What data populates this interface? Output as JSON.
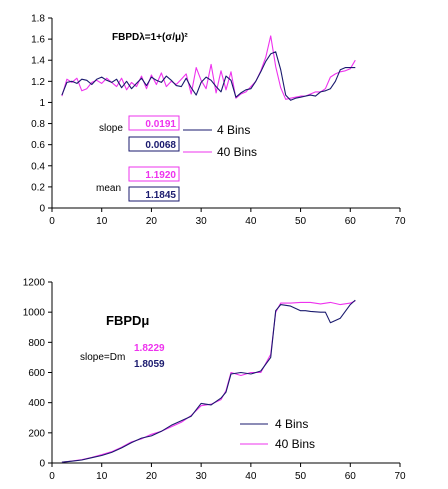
{
  "colors": {
    "series_4bins": "#1a1a6e",
    "series_40bins": "#ee33ee",
    "axis": "#000000"
  },
  "chart_data": [
    {
      "type": "line",
      "title": "FBPDλ=1+(σ/μ)²",
      "xlim": [
        0,
        70
      ],
      "ylim": [
        0,
        1.8
      ],
      "xticks": [
        "0",
        "10",
        "20",
        "30",
        "40",
        "50",
        "60",
        "70"
      ],
      "yticks": [
        "0",
        "0.2",
        "0.4",
        "0.6",
        "0.8",
        "1",
        "1.2",
        "1.4",
        "1.6",
        "1.8"
      ],
      "grid": false,
      "legend_position": "center-right",
      "series": [
        {
          "name": "4 Bins",
          "x": [
            2,
            3,
            4,
            5,
            6,
            7,
            8,
            9,
            10,
            11,
            12,
            13,
            14,
            15,
            16,
            17,
            18,
            19,
            20,
            21,
            22,
            23,
            24,
            25,
            26,
            27,
            28,
            29,
            30,
            31,
            32,
            33,
            34,
            35,
            36,
            37,
            38,
            39,
            40,
            41,
            42,
            43,
            44,
            45,
            46,
            47,
            48,
            49,
            50,
            51,
            52,
            53,
            54,
            55,
            56,
            57,
            58,
            59,
            60,
            61
          ],
          "y": [
            1.07,
            1.19,
            1.2,
            1.18,
            1.22,
            1.21,
            1.17,
            1.22,
            1.24,
            1.21,
            1.19,
            1.22,
            1.14,
            1.2,
            1.13,
            1.18,
            1.23,
            1.16,
            1.24,
            1.21,
            1.19,
            1.25,
            1.21,
            1.16,
            1.15,
            1.23,
            1.14,
            1.07,
            1.19,
            1.24,
            1.21,
            1.15,
            1.1,
            1.25,
            1.21,
            1.05,
            1.09,
            1.12,
            1.13,
            1.2,
            1.29,
            1.39,
            1.46,
            1.48,
            1.31,
            1.07,
            1.02,
            1.04,
            1.05,
            1.06,
            1.07,
            1.06,
            1.1,
            1.11,
            1.13,
            1.2,
            1.31,
            1.33,
            1.33,
            1.33
          ]
        },
        {
          "name": "40 Bins",
          "x": [
            2,
            3,
            4,
            5,
            6,
            7,
            8,
            9,
            10,
            11,
            12,
            13,
            14,
            15,
            16,
            17,
            18,
            19,
            20,
            21,
            22,
            23,
            24,
            25,
            26,
            27,
            28,
            29,
            30,
            31,
            32,
            33,
            34,
            35,
            36,
            37,
            38,
            39,
            40,
            41,
            42,
            43,
            44,
            45,
            46,
            47,
            48,
            49,
            50,
            51,
            52,
            53,
            54,
            55,
            56,
            57,
            58,
            59,
            60,
            61
          ],
          "y": [
            1.06,
            1.22,
            1.19,
            1.23,
            1.11,
            1.13,
            1.19,
            1.21,
            1.18,
            1.23,
            1.19,
            1.15,
            1.23,
            1.12,
            1.19,
            1.15,
            1.25,
            1.13,
            1.26,
            1.17,
            1.28,
            1.15,
            1.2,
            1.17,
            1.22,
            1.27,
            1.08,
            1.33,
            1.21,
            1.13,
            1.36,
            1.09,
            1.3,
            1.12,
            1.29,
            1.04,
            1.08,
            1.1,
            1.15,
            1.2,
            1.3,
            1.43,
            1.63,
            1.34,
            1.14,
            1.03,
            1.04,
            1.05,
            1.06,
            1.06,
            1.08,
            1.1,
            1.1,
            1.13,
            1.24,
            1.27,
            1.29,
            1.3,
            1.32,
            1.4
          ]
        }
      ],
      "annotations": [
        {
          "text": "slope",
          "values": [
            "0.0191",
            "0.0068"
          ]
        },
        {
          "text": "mean",
          "values": [
            "1.1920",
            "1.1845"
          ]
        }
      ]
    },
    {
      "type": "line",
      "title": "FBPDμ",
      "xlim": [
        0,
        70
      ],
      "ylim": [
        0,
        1200
      ],
      "xticks": [
        "0",
        "10",
        "20",
        "30",
        "40",
        "50",
        "60",
        "70"
      ],
      "yticks": [
        "0",
        "200",
        "400",
        "600",
        "800",
        "1000",
        "1200"
      ],
      "grid": false,
      "legend_position": "bottom-right",
      "series": [
        {
          "name": "4 Bins",
          "x": [
            2,
            4,
            6,
            8,
            10,
            12,
            14,
            16,
            18,
            20,
            22,
            24,
            26,
            28,
            30,
            32,
            34,
            35,
            36,
            38,
            40,
            42,
            44,
            45,
            46,
            48,
            50,
            51,
            52,
            54,
            55,
            56,
            58,
            60,
            61
          ],
          "y": [
            5,
            12,
            20,
            35,
            50,
            70,
            100,
            135,
            165,
            180,
            210,
            250,
            280,
            310,
            395,
            385,
            430,
            470,
            590,
            600,
            590,
            610,
            700,
            1010,
            1050,
            1040,
            1010,
            1010,
            1005,
            1000,
            1000,
            930,
            960,
            1050,
            1080
          ]
        },
        {
          "name": "40 Bins",
          "x": [
            2,
            4,
            6,
            8,
            10,
            12,
            14,
            16,
            18,
            20,
            22,
            24,
            26,
            28,
            30,
            32,
            34,
            35,
            36,
            38,
            40,
            42,
            44,
            45,
            46,
            48,
            50,
            52,
            54,
            56,
            58,
            60,
            61
          ],
          "y": [
            5,
            13,
            22,
            37,
            55,
            75,
            105,
            140,
            160,
            190,
            210,
            240,
            270,
            315,
            380,
            390,
            420,
            480,
            600,
            580,
            600,
            600,
            720,
            1000,
            1060,
            1060,
            1065,
            1065,
            1055,
            1065,
            1050,
            1060,
            1075
          ]
        }
      ],
      "annotations": [
        {
          "text": "slope=Dm",
          "values": [
            "1.8229",
            "1.8059"
          ]
        }
      ]
    }
  ]
}
